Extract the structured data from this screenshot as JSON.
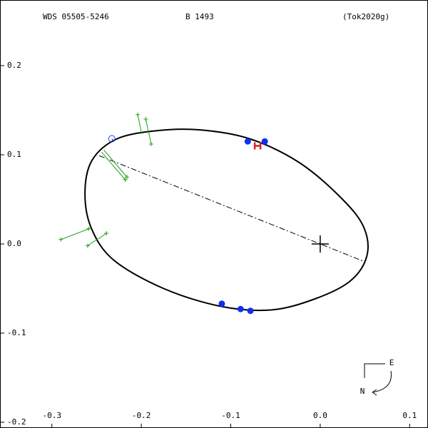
{
  "chart_data": {
    "type": "scatter",
    "header": [
      "WDS 05505-5246",
      "B  1493",
      "(Tok2020g)"
    ],
    "compass": [
      "E",
      "N"
    ],
    "xlim": [
      -0.358,
      0.1205
    ],
    "ylim": [
      -0.2064,
      0.2736
    ],
    "xticks": [
      -0.3,
      -0.2,
      -0.1,
      {
        "value": 0,
        "label": "0.0"
      },
      0.1
    ],
    "yticks": [
      0.2,
      0.1,
      {
        "value": 0,
        "label": "0.0"
      },
      -0.1,
      -0.2
    ],
    "grid": false,
    "series": [
      {
        "name": "orbit",
        "style": "closed-curve",
        "color": "#000000",
        "x": [
          -0.263,
          -0.255,
          -0.227,
          -0.183,
          -0.135,
          -0.079,
          -0.023,
          0.025,
          0.049,
          0.052,
          0.033,
          -0.007,
          -0.055,
          -0.111,
          -0.175,
          -0.231,
          -0.256
        ],
        "values": [
          0.058,
          0.094,
          0.118,
          0.127,
          0.128,
          0.118,
          0.091,
          0.05,
          0.018,
          -0.014,
          -0.042,
          -0.062,
          -0.074,
          -0.07,
          -0.05,
          -0.018,
          0.018
        ]
      },
      {
        "name": "line of nodes",
        "style": "dash-dot",
        "color": "#000000",
        "x": [
          -0.247,
          0.05
        ],
        "values": [
          0.099,
          -0.02
        ]
      },
      {
        "name": "primary",
        "style": "cross",
        "color": "#000000",
        "x": [
          0
        ],
        "values": [
          0
        ]
      },
      {
        "name": "micrometer",
        "style": "plus",
        "color": "#22a022",
        "x": [
          -0.204,
          -0.195,
          -0.189,
          -0.216,
          -0.218,
          -0.29,
          -0.259,
          -0.239,
          -0.26
        ],
        "values": [
          0.145,
          0.14,
          0.112,
          0.075,
          0.072,
          0.005,
          0.017,
          0.012,
          -0.002
        ]
      },
      {
        "name": "visual",
        "style": "open-circle",
        "color": "#2040e0",
        "x": [
          -0.233
        ],
        "values": [
          0.118
        ]
      },
      {
        "name": "speckle",
        "style": "dot",
        "color": "#1030f0",
        "x": [
          -0.081,
          -0.062,
          -0.11,
          -0.089,
          -0.078
        ],
        "values": [
          0.115,
          0.115,
          -0.067,
          -0.073,
          -0.075
        ]
      },
      {
        "name": "hipparcos",
        "style": "h-mark",
        "color": "#e02020",
        "x": [
          -0.07
        ],
        "values": [
          0.11
        ]
      }
    ]
  }
}
